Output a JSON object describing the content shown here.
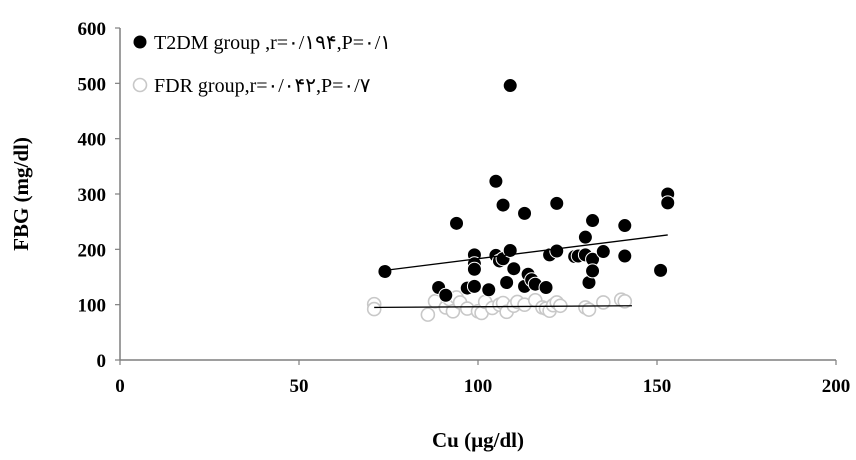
{
  "chart_data": {
    "type": "scatter",
    "xlabel": "Cu (µg/dl)",
    "ylabel": "FBG (mg/dl)",
    "xlim": [
      0,
      200
    ],
    "ylim": [
      0,
      600
    ],
    "xticks": [
      "0",
      "50",
      "100",
      "150",
      "200"
    ],
    "yticks": [
      "0",
      "100",
      "200",
      "300",
      "400",
      "500",
      "600"
    ],
    "grid": false,
    "legend_position": "top-left",
    "series": [
      {
        "name": "T2DM group ,r=۰/۱۹۴,P=۰/۱",
        "marker": "filled-circle",
        "color": "#000000",
        "points": [
          [
            74,
            160
          ],
          [
            89,
            131
          ],
          [
            91,
            117
          ],
          [
            94,
            247
          ],
          [
            97,
            130
          ],
          [
            99,
            190
          ],
          [
            99,
            174
          ],
          [
            99,
            164
          ],
          [
            99,
            133
          ],
          [
            103,
            127
          ],
          [
            105,
            323
          ],
          [
            105,
            189
          ],
          [
            106,
            179
          ],
          [
            107,
            280
          ],
          [
            107,
            183
          ],
          [
            108,
            140
          ],
          [
            109,
            496
          ],
          [
            109,
            198
          ],
          [
            110,
            165
          ],
          [
            113,
            265
          ],
          [
            113,
            133
          ],
          [
            114,
            155
          ],
          [
            115,
            145
          ],
          [
            116,
            137
          ],
          [
            119,
            131
          ],
          [
            120,
            190
          ],
          [
            122,
            283
          ],
          [
            122,
            197
          ],
          [
            127,
            187
          ],
          [
            128,
            188
          ],
          [
            130,
            222
          ],
          [
            130,
            190
          ],
          [
            131,
            140
          ],
          [
            132,
            252
          ],
          [
            132,
            182
          ],
          [
            132,
            161
          ],
          [
            135,
            196
          ],
          [
            141,
            243
          ],
          [
            141,
            188
          ],
          [
            151,
            162
          ],
          [
            153,
            300
          ],
          [
            153,
            284
          ]
        ],
        "trendline": {
          "x": [
            74,
            153
          ],
          "y": [
            162,
            226
          ]
        }
      },
      {
        "name": "FDR group,r=۰/۰۴۲,P=۰/۷",
        "marker": "hollow-circle",
        "color": "#c8c8c8",
        "points": [
          [
            71,
            101
          ],
          [
            71,
            92
          ],
          [
            86,
            82
          ],
          [
            88,
            106
          ],
          [
            91,
            95
          ],
          [
            92,
            110
          ],
          [
            93,
            88
          ],
          [
            94,
            113
          ],
          [
            95,
            104
          ],
          [
            97,
            93
          ],
          [
            100,
            88
          ],
          [
            101,
            85
          ],
          [
            102,
            105
          ],
          [
            104,
            94
          ],
          [
            106,
            100
          ],
          [
            107,
            103
          ],
          [
            108,
            87
          ],
          [
            110,
            98
          ],
          [
            111,
            105
          ],
          [
            113,
            100
          ],
          [
            116,
            108
          ],
          [
            118,
            95
          ],
          [
            119,
            93
          ],
          [
            120,
            89
          ],
          [
            121,
            99
          ],
          [
            122,
            104
          ],
          [
            123,
            98
          ],
          [
            130,
            95
          ],
          [
            131,
            91
          ],
          [
            135,
            104
          ],
          [
            140,
            109
          ],
          [
            141,
            106
          ]
        ],
        "trendline": {
          "x": [
            71,
            143
          ],
          "y": [
            95,
            98
          ]
        }
      }
    ]
  }
}
